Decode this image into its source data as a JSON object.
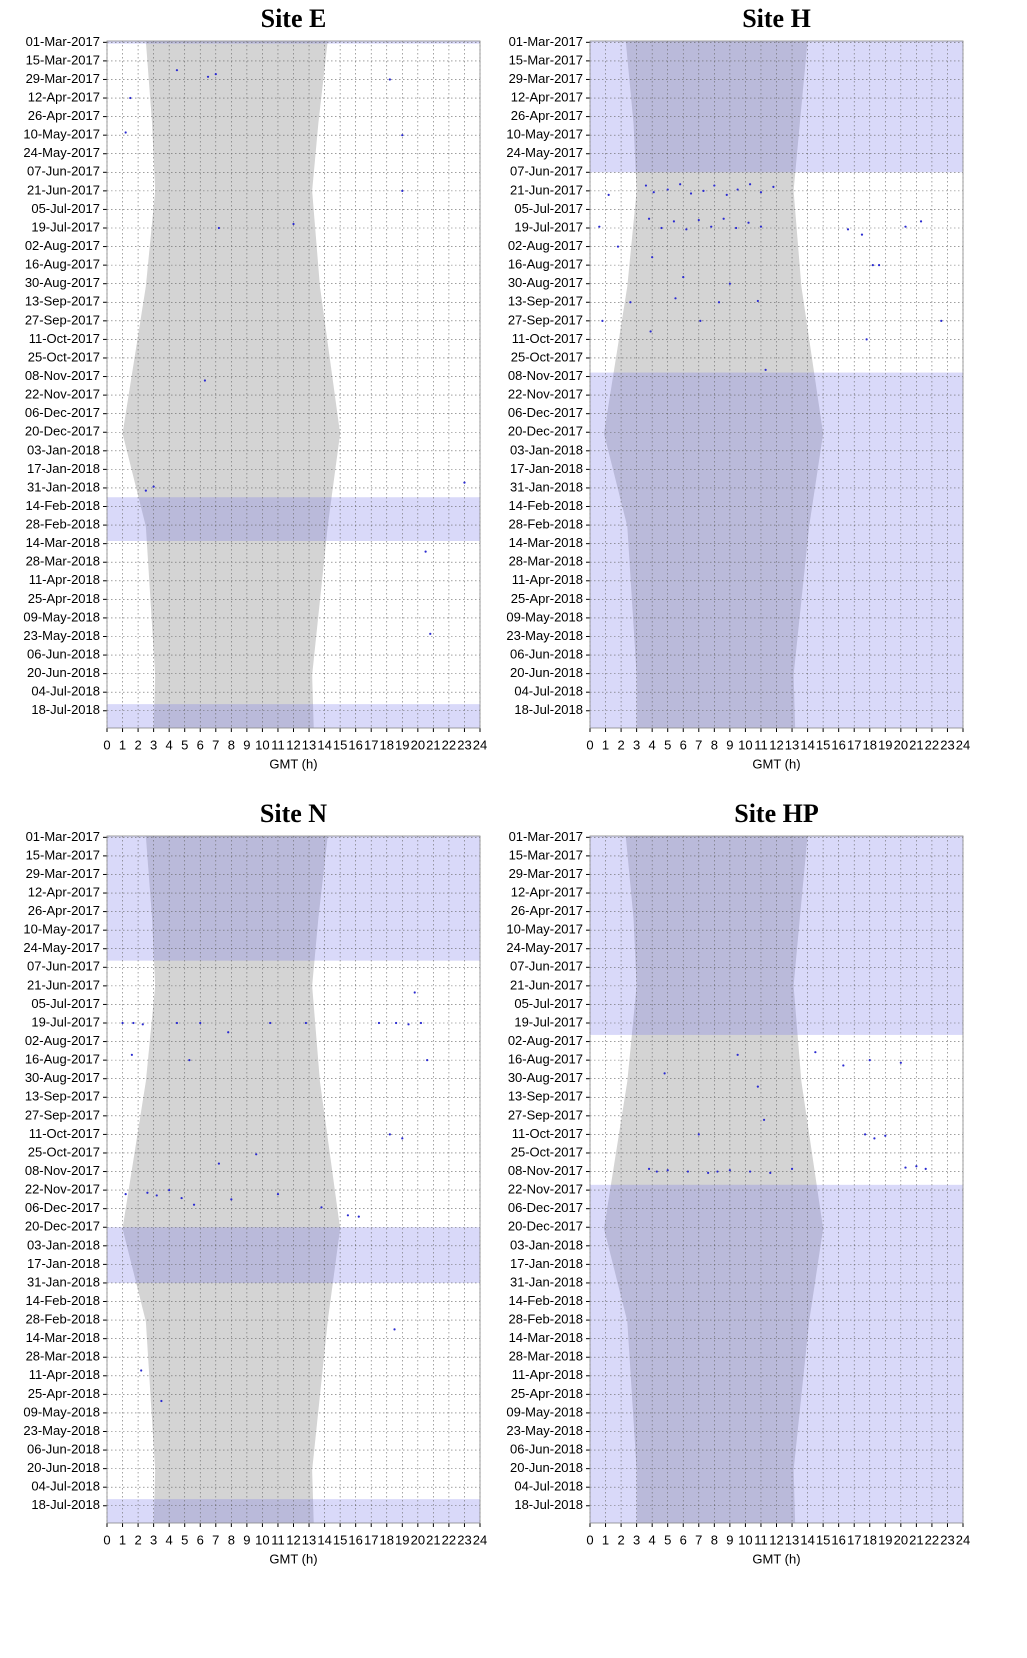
{
  "chart_data": [
    {
      "type": "scatter",
      "title": "Site E",
      "x_label": "GMT (h)",
      "xlim": [
        0,
        24
      ],
      "xticks": [
        0,
        1,
        2,
        3,
        4,
        5,
        6,
        7,
        8,
        9,
        10,
        11,
        12,
        13,
        14,
        15,
        16,
        17,
        18,
        19,
        20,
        21,
        22,
        23,
        24
      ],
      "ylim": [
        "28-Feb-2017",
        "31-Jul-2018"
      ],
      "yticks": [
        "01-Mar-2017",
        "15-Mar-2017",
        "29-Mar-2017",
        "12-Apr-2017",
        "26-Apr-2017",
        "10-May-2017",
        "24-May-2017",
        "07-Jun-2017",
        "21-Jun-2017",
        "05-Jul-2017",
        "19-Jul-2017",
        "02-Aug-2017",
        "16-Aug-2017",
        "30-Aug-2017",
        "13-Sep-2017",
        "27-Sep-2017",
        "11-Oct-2017",
        "25-Oct-2017",
        "08-Nov-2017",
        "22-Nov-2017",
        "06-Dec-2017",
        "20-Dec-2017",
        "03-Jan-2018",
        "17-Jan-2018",
        "31-Jan-2018",
        "14-Feb-2018",
        "28-Feb-2018",
        "14-Mar-2018",
        "28-Mar-2018",
        "11-Apr-2018",
        "25-Apr-2018",
        "09-May-2018",
        "23-May-2018",
        "06-Jun-2018",
        "20-Jun-2018",
        "04-Jul-2018",
        "18-Jul-2018"
      ],
      "grid": true,
      "color": "#2a2ad0",
      "night": {
        "dates": [
          "28-Feb-2017",
          "01-May-2017",
          "21-Jun-2017",
          "01-Sep-2017",
          "21-Dec-2017",
          "01-Mar-2018",
          "21-Jun-2018",
          "31-Jul-2018"
        ],
        "start": [
          2.5,
          2.9,
          3.1,
          2.5,
          1.0,
          2.5,
          3.1,
          3.0
        ],
        "end": [
          14.2,
          13.6,
          13.2,
          13.7,
          15.0,
          14.2,
          13.2,
          13.3
        ]
      },
      "shaded_periods": [
        {
          "from": "28-Feb-2017",
          "to": "02-Mar-2017"
        },
        {
          "from": "07-Feb-2018",
          "to": "12-Mar-2018"
        },
        {
          "from": "13-Jul-2018",
          "to": "31-Jul-2018"
        }
      ],
      "x": [
        4.5,
        6.5,
        7.0,
        1.5,
        1.2,
        19.0,
        19.0,
        6.3,
        2.5,
        3.0,
        23.0,
        20.5,
        20.8,
        18.2,
        12.0,
        7.2
      ],
      "y": [
        "22-Mar-2017",
        "27-Mar-2017",
        "25-Mar-2017",
        "12-Apr-2017",
        "08-May-2017",
        "10-May-2017",
        "21-Jun-2017",
        "11-Nov-2017",
        "02-Feb-2018",
        "30-Jan-2018",
        "27-Jan-2018",
        "20-Mar-2018",
        "21-May-2018",
        "29-Mar-2017",
        "16-Jul-2017",
        "19-Jul-2017"
      ]
    },
    {
      "type": "scatter",
      "title": "Site H",
      "x_label": "GMT (h)",
      "xlim": [
        0,
        24
      ],
      "xticks": [
        0,
        1,
        2,
        3,
        4,
        5,
        6,
        7,
        8,
        9,
        10,
        11,
        12,
        13,
        14,
        15,
        16,
        17,
        18,
        19,
        20,
        21,
        22,
        23,
        24
      ],
      "ylim": [
        "28-Feb-2017",
        "31-Jul-2018"
      ],
      "yticks": [
        "01-Mar-2017",
        "15-Mar-2017",
        "29-Mar-2017",
        "12-Apr-2017",
        "26-Apr-2017",
        "10-May-2017",
        "24-May-2017",
        "07-Jun-2017",
        "21-Jun-2017",
        "05-Jul-2017",
        "19-Jul-2017",
        "02-Aug-2017",
        "16-Aug-2017",
        "30-Aug-2017",
        "13-Sep-2017",
        "27-Sep-2017",
        "11-Oct-2017",
        "25-Oct-2017",
        "08-Nov-2017",
        "22-Nov-2017",
        "06-Dec-2017",
        "20-Dec-2017",
        "03-Jan-2018",
        "17-Jan-2018",
        "31-Jan-2018",
        "14-Feb-2018",
        "28-Feb-2018",
        "14-Mar-2018",
        "28-Mar-2018",
        "11-Apr-2018",
        "25-Apr-2018",
        "09-May-2018",
        "23-May-2018",
        "06-Jun-2018",
        "20-Jun-2018",
        "04-Jul-2018",
        "18-Jul-2018"
      ],
      "grid": true,
      "color": "#2a2ad0",
      "night": {
        "dates": [
          "28-Feb-2017",
          "01-May-2017",
          "21-Jun-2017",
          "01-Sep-2017",
          "21-Dec-2017",
          "01-Mar-2018",
          "21-Jun-2018",
          "31-Jul-2018"
        ],
        "start": [
          2.3,
          2.8,
          3.0,
          2.4,
          0.9,
          2.4,
          3.0,
          3.0
        ],
        "end": [
          14.0,
          13.5,
          13.1,
          13.6,
          15.0,
          14.1,
          13.1,
          13.2
        ]
      },
      "shaded_periods": [
        {
          "from": "28-Feb-2017",
          "to": "07-Jun-2017"
        },
        {
          "from": "05-Nov-2017",
          "to": "31-Jul-2018"
        }
      ],
      "x": [
        1.2,
        3.6,
        4.1,
        5.0,
        5.8,
        6.5,
        7.3,
        8.0,
        8.8,
        9.5,
        10.3,
        11.0,
        11.8,
        3.8,
        4.6,
        5.4,
        6.2,
        7.0,
        7.8,
        8.6,
        9.4,
        10.2,
        11.0,
        0.6,
        1.8,
        16.6,
        17.5,
        18.2,
        20.3,
        21.3,
        4.0,
        6.0,
        9.0,
        2.6,
        5.5,
        8.3,
        10.8,
        0.8,
        17.8,
        22.6,
        3.9,
        7.1,
        11.3,
        18.6
      ],
      "y": [
        "24-Jun-2017",
        "17-Jun-2017",
        "22-Jun-2017",
        "20-Jun-2017",
        "16-Jun-2017",
        "23-Jun-2017",
        "21-Jun-2017",
        "17-Jun-2017",
        "24-Jun-2017",
        "20-Jun-2017",
        "16-Jun-2017",
        "22-Jun-2017",
        "18-Jun-2017",
        "12-Jul-2017",
        "19-Jul-2017",
        "14-Jul-2017",
        "20-Jul-2017",
        "13-Jul-2017",
        "18-Jul-2017",
        "12-Jul-2017",
        "19-Jul-2017",
        "15-Jul-2017",
        "18-Jul-2017",
        "18-Jul-2017",
        "02-Aug-2017",
        "20-Jul-2017",
        "24-Jul-2017",
        "16-Aug-2017",
        "18-Jul-2017",
        "14-Jul-2017",
        "10-Aug-2017",
        "25-Aug-2017",
        "30-Aug-2017",
        "13-Sep-2017",
        "10-Sep-2017",
        "13-Sep-2017",
        "12-Sep-2017",
        "27-Sep-2017",
        "11-Oct-2017",
        "27-Sep-2017",
        "05-Oct-2017",
        "27-Sep-2017",
        "03-Nov-2017",
        "16-Aug-2017"
      ]
    },
    {
      "type": "scatter",
      "title": "Site N",
      "x_label": "GMT (h)",
      "xlim": [
        0,
        24
      ],
      "xticks": [
        0,
        1,
        2,
        3,
        4,
        5,
        6,
        7,
        8,
        9,
        10,
        11,
        12,
        13,
        14,
        15,
        16,
        17,
        18,
        19,
        20,
        21,
        22,
        23,
        24
      ],
      "ylim": [
        "28-Feb-2017",
        "31-Jul-2018"
      ],
      "yticks": [
        "01-Mar-2017",
        "15-Mar-2017",
        "29-Mar-2017",
        "12-Apr-2017",
        "26-Apr-2017",
        "10-May-2017",
        "24-May-2017",
        "07-Jun-2017",
        "21-Jun-2017",
        "05-Jul-2017",
        "19-Jul-2017",
        "02-Aug-2017",
        "16-Aug-2017",
        "30-Aug-2017",
        "13-Sep-2017",
        "27-Sep-2017",
        "11-Oct-2017",
        "25-Oct-2017",
        "08-Nov-2017",
        "22-Nov-2017",
        "06-Dec-2017",
        "20-Dec-2017",
        "03-Jan-2018",
        "17-Jan-2018",
        "31-Jan-2018",
        "14-Feb-2018",
        "28-Feb-2018",
        "14-Mar-2018",
        "28-Mar-2018",
        "11-Apr-2018",
        "25-Apr-2018",
        "09-May-2018",
        "23-May-2018",
        "06-Jun-2018",
        "20-Jun-2018",
        "04-Jul-2018",
        "18-Jul-2018"
      ],
      "grid": true,
      "color": "#2a2ad0",
      "night": {
        "dates": [
          "28-Feb-2017",
          "01-May-2017",
          "21-Jun-2017",
          "01-Sep-2017",
          "21-Dec-2017",
          "01-Mar-2018",
          "21-Jun-2018",
          "31-Jul-2018"
        ],
        "start": [
          2.5,
          2.9,
          3.1,
          2.5,
          1.0,
          2.5,
          3.1,
          3.0
        ],
        "end": [
          14.2,
          13.6,
          13.2,
          13.7,
          15.0,
          14.2,
          13.2,
          13.3
        ]
      },
      "shaded_periods": [
        {
          "from": "28-Feb-2017",
          "to": "02-Jun-2017"
        },
        {
          "from": "20-Dec-2017",
          "to": "31-Jan-2018"
        },
        {
          "from": "13-Jul-2018",
          "to": "31-Jul-2018"
        }
      ],
      "x": [
        1.0,
        1.7,
        2.3,
        4.5,
        6.0,
        7.8,
        10.5,
        12.8,
        17.5,
        18.6,
        19.4,
        20.2,
        1.6,
        5.3,
        20.6,
        1.2,
        2.6,
        3.2,
        4.0,
        4.8,
        5.6,
        8.0,
        11.0,
        13.8,
        15.5,
        16.2,
        18.2,
        19.0,
        18.5,
        2.2,
        3.5,
        19.8,
        7.2,
        9.6
      ],
      "y": [
        "19-Jul-2017",
        "19-Jul-2017",
        "20-Jul-2017",
        "19-Jul-2017",
        "19-Jul-2017",
        "26-Jul-2017",
        "19-Jul-2017",
        "19-Jul-2017",
        "19-Jul-2017",
        "19-Jul-2017",
        "20-Jul-2017",
        "19-Jul-2017",
        "12-Aug-2017",
        "16-Aug-2017",
        "16-Aug-2017",
        "25-Nov-2017",
        "24-Nov-2017",
        "26-Nov-2017",
        "22-Nov-2017",
        "28-Nov-2017",
        "03-Dec-2017",
        "29-Nov-2017",
        "25-Nov-2017",
        "05-Dec-2017",
        "11-Dec-2017",
        "12-Dec-2017",
        "11-Oct-2017",
        "14-Oct-2017",
        "07-Mar-2018",
        "07-Apr-2018",
        "30-Apr-2018",
        "26-Jun-2017",
        "02-Nov-2017",
        "26-Oct-2017"
      ]
    },
    {
      "type": "scatter",
      "title": "Site HP",
      "x_label": "GMT (h)",
      "xlim": [
        0,
        24
      ],
      "xticks": [
        0,
        1,
        2,
        3,
        4,
        5,
        6,
        7,
        8,
        9,
        10,
        11,
        12,
        13,
        14,
        15,
        16,
        17,
        18,
        19,
        20,
        21,
        22,
        23,
        24
      ],
      "ylim": [
        "28-Feb-2017",
        "31-Jul-2018"
      ],
      "yticks": [
        "01-Mar-2017",
        "15-Mar-2017",
        "29-Mar-2017",
        "12-Apr-2017",
        "26-Apr-2017",
        "10-May-2017",
        "24-May-2017",
        "07-Jun-2017",
        "21-Jun-2017",
        "05-Jul-2017",
        "19-Jul-2017",
        "02-Aug-2017",
        "16-Aug-2017",
        "30-Aug-2017",
        "13-Sep-2017",
        "27-Sep-2017",
        "11-Oct-2017",
        "25-Oct-2017",
        "08-Nov-2017",
        "22-Nov-2017",
        "06-Dec-2017",
        "20-Dec-2017",
        "03-Jan-2018",
        "17-Jan-2018",
        "31-Jan-2018",
        "14-Feb-2018",
        "28-Feb-2018",
        "14-Mar-2018",
        "28-Mar-2018",
        "11-Apr-2018",
        "25-Apr-2018",
        "09-May-2018",
        "23-May-2018",
        "06-Jun-2018",
        "20-Jun-2018",
        "04-Jul-2018",
        "18-Jul-2018"
      ],
      "grid": true,
      "color": "#2a2ad0",
      "night": {
        "dates": [
          "28-Feb-2017",
          "01-May-2017",
          "21-Jun-2017",
          "01-Sep-2017",
          "21-Dec-2017",
          "01-Mar-2018",
          "21-Jun-2018",
          "31-Jul-2018"
        ],
        "start": [
          2.3,
          2.8,
          3.0,
          2.4,
          0.9,
          2.4,
          3.0,
          3.0
        ],
        "end": [
          14.0,
          13.5,
          13.1,
          13.6,
          15.0,
          14.1,
          13.1,
          13.2
        ]
      },
      "shaded_periods": [
        {
          "from": "28-Feb-2017",
          "to": "28-Jul-2017"
        },
        {
          "from": "18-Nov-2017",
          "to": "31-Jul-2018"
        }
      ],
      "x": [
        3.8,
        4.3,
        5.0,
        6.3,
        7.6,
        8.2,
        9.0,
        10.3,
        11.6,
        13.0,
        17.7,
        18.3,
        19.0,
        20.3,
        21.0,
        21.6,
        9.5,
        10.8,
        11.2,
        14.5,
        16.3,
        18.0,
        20.0,
        4.8,
        7.0
      ],
      "y": [
        "06-Nov-2017",
        "08-Nov-2017",
        "07-Nov-2017",
        "08-Nov-2017",
        "09-Nov-2017",
        "08-Nov-2017",
        "07-Nov-2017",
        "08-Nov-2017",
        "09-Nov-2017",
        "06-Nov-2017",
        "11-Oct-2017",
        "14-Oct-2017",
        "12-Oct-2017",
        "05-Nov-2017",
        "04-Nov-2017",
        "06-Nov-2017",
        "12-Aug-2017",
        "05-Sep-2017",
        "30-Sep-2017",
        "10-Aug-2017",
        "20-Aug-2017",
        "16-Aug-2017",
        "18-Aug-2017",
        "26-Aug-2017",
        "11-Oct-2017"
      ]
    }
  ]
}
